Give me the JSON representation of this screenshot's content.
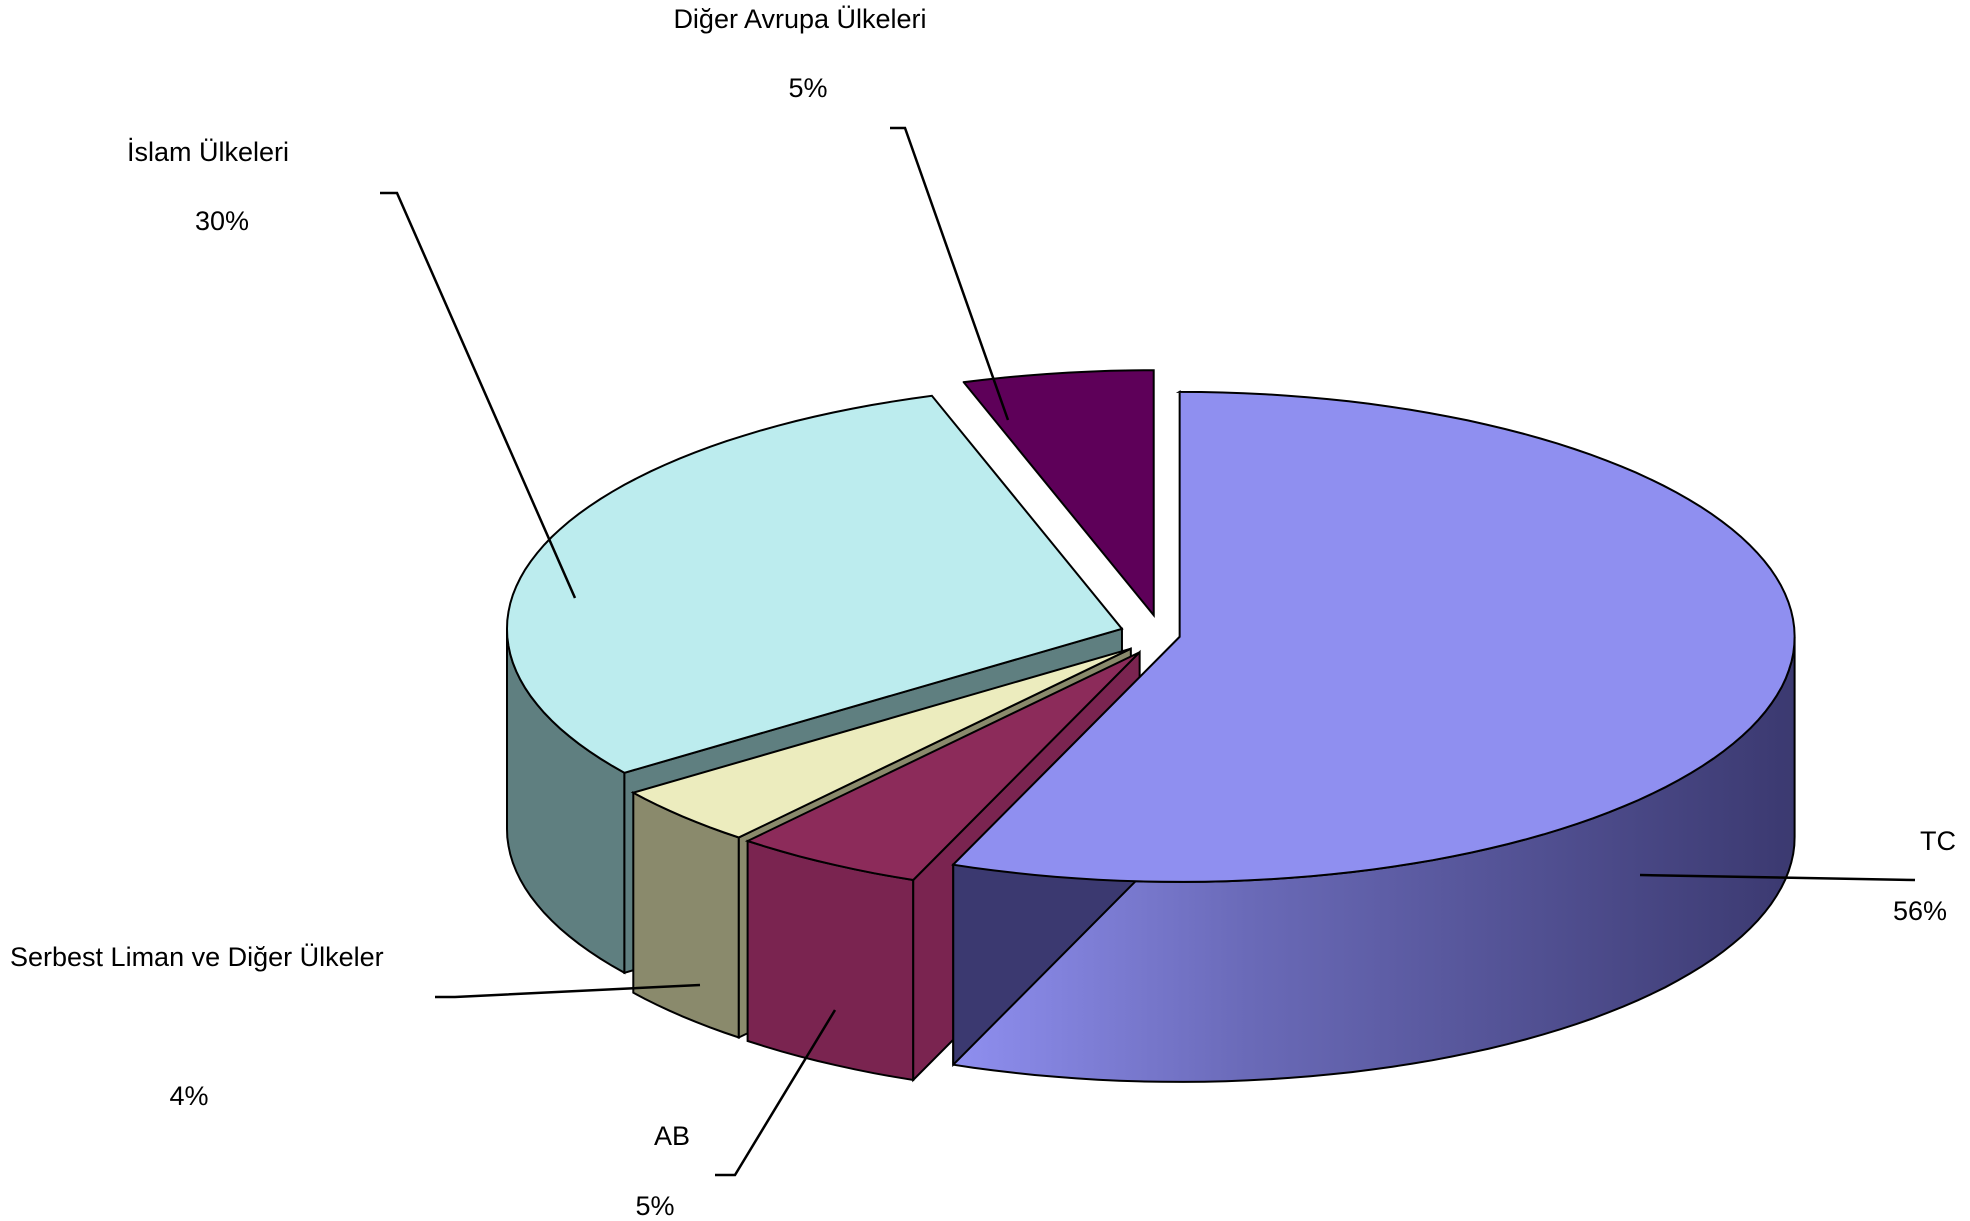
{
  "chart_data": {
    "type": "pie",
    "title": "",
    "style": "3d-exploded",
    "slices": [
      {
        "name": "TC",
        "value": 56,
        "label": "56%",
        "color": "#8f8ff0",
        "side_color": "#3b3970"
      },
      {
        "name": "AB",
        "value": 5,
        "label": "5%",
        "color": "#8c2b5a",
        "side_color": "#7a2450"
      },
      {
        "name": "Serbest Liman ve Diğer Ülkeler",
        "value": 4,
        "label": "4%",
        "color": "#ececbe",
        "side_color": "#8a8a6c"
      },
      {
        "name": "İslam Ülkeleri",
        "value": 30,
        "label": "30%",
        "color": "#bcecee",
        "side_color": "#5f7f80"
      },
      {
        "name": "Diğer Avrupa Ülkeleri",
        "value": 5,
        "label": "5%",
        "color": "#5e0059",
        "side_color": "#2e0030"
      }
    ]
  }
}
